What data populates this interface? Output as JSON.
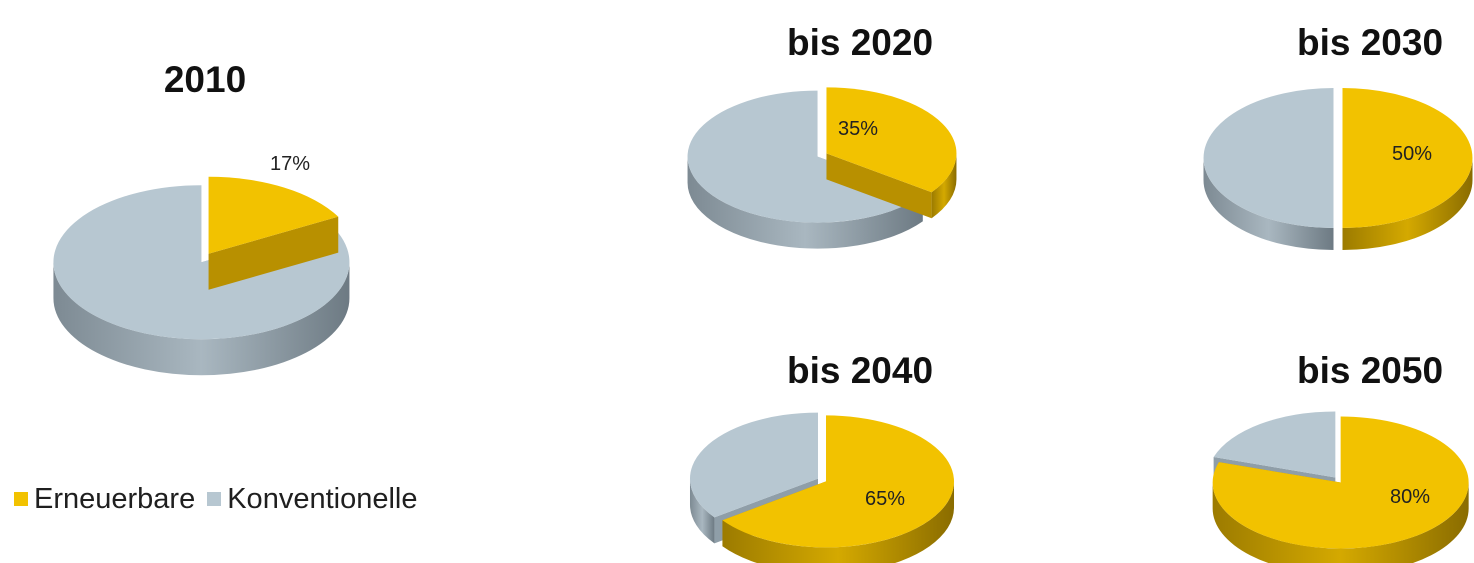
{
  "colors": {
    "renewable": "#f2c200",
    "renewable_dark": "#8a6d00",
    "renewable_mid": "#b89000",
    "conventional": "#b7c7d1",
    "conventional_dark": "#6a7780",
    "conventional_mid": "#8f9ea8",
    "label_text": "#222222"
  },
  "legend": {
    "renewable": "Erneuerbare",
    "conventional": "Konventionelle"
  },
  "chart_data": [
    {
      "type": "pie",
      "title": "2010",
      "categories": [
        "Erneuerbare",
        "Konventionelle"
      ],
      "values": [
        17,
        83
      ],
      "label": "17%"
    },
    {
      "type": "pie",
      "title": "bis 2020",
      "categories": [
        "Erneuerbare",
        "Konventionelle"
      ],
      "values": [
        35,
        65
      ],
      "label": "35%"
    },
    {
      "type": "pie",
      "title": "bis 2030",
      "categories": [
        "Erneuerbare",
        "Konventionelle"
      ],
      "values": [
        50,
        50
      ],
      "label": "50%"
    },
    {
      "type": "pie",
      "title": "bis 2040",
      "categories": [
        "Erneuerbare",
        "Konventionelle"
      ],
      "values": [
        65,
        35
      ],
      "label": "65%"
    },
    {
      "type": "pie",
      "title": "bis 2050",
      "categories": [
        "Erneuerbare",
        "Konventionelle"
      ],
      "values": [
        80,
        20
      ],
      "label": "80%"
    }
  ]
}
